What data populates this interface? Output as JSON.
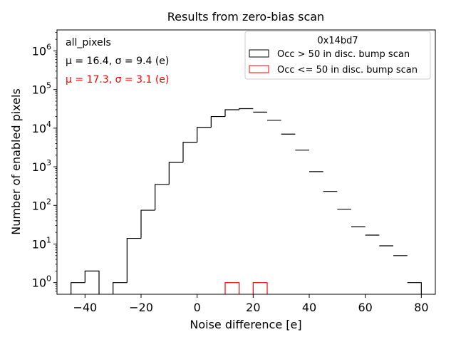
{
  "chart_data": {
    "type": "histogram",
    "title": "Results from zero-bias scan",
    "xlabel": "Noise difference [e]",
    "ylabel": "Number of enabled pixels",
    "xlim": [
      -50,
      85
    ],
    "ylim": [
      0.5,
      3500000
    ],
    "yscale": "log",
    "xticks": [
      -40,
      -20,
      0,
      20,
      40,
      60,
      80
    ],
    "xtick_labels": [
      "−40",
      "−20",
      "0",
      "20",
      "40",
      "60",
      "80"
    ],
    "yticks": [
      1,
      10,
      100,
      1000,
      10000,
      100000,
      1000000
    ],
    "ytick_bases": [
      "10",
      "10",
      "10",
      "10",
      "10",
      "10",
      "10"
    ],
    "ytick_exponents": [
      "0",
      "1",
      "2",
      "3",
      "4",
      "5",
      "6"
    ],
    "legend": {
      "title": "0x14bd7",
      "location": "top-right"
    },
    "annotations": {
      "label": "all_pixels",
      "black_stats": "μ = 16.4, σ = 9.4 (e)",
      "red_stats": "μ = 17.3, σ = 3.1 (e)"
    },
    "series": [
      {
        "name": "Occ > 50 in disc. bump scan",
        "color": "#000000",
        "bin_edges": [
          -45,
          -40,
          -35,
          -30,
          -25,
          -20,
          -15,
          -10,
          -5,
          0,
          5,
          10,
          15,
          20,
          25,
          30,
          35,
          40,
          45,
          50,
          55,
          60,
          65,
          70,
          75,
          80
        ],
        "counts": [
          1,
          2,
          0,
          1,
          14,
          75,
          350,
          1300,
          4300,
          10500,
          20000,
          30000,
          32000,
          26000,
          16000,
          7000,
          2700,
          750,
          230,
          80,
          28,
          17,
          9,
          5,
          1
        ]
      },
      {
        "name": "Occ <= 50 in disc. bump scan",
        "color": "#ff0000",
        "bin_edges": [
          -45,
          -40,
          -35,
          -30,
          -25,
          -20,
          -15,
          -10,
          -5,
          0,
          5,
          10,
          15,
          20,
          25,
          30,
          35,
          40,
          45,
          50,
          55,
          60,
          65,
          70,
          75,
          80
        ],
        "counts": [
          0,
          0,
          0,
          0,
          0,
          0,
          0,
          0,
          0,
          0,
          0,
          1,
          0,
          1,
          0,
          0,
          0,
          0,
          0,
          0,
          0,
          0,
          0,
          0,
          0
        ]
      }
    ]
  }
}
